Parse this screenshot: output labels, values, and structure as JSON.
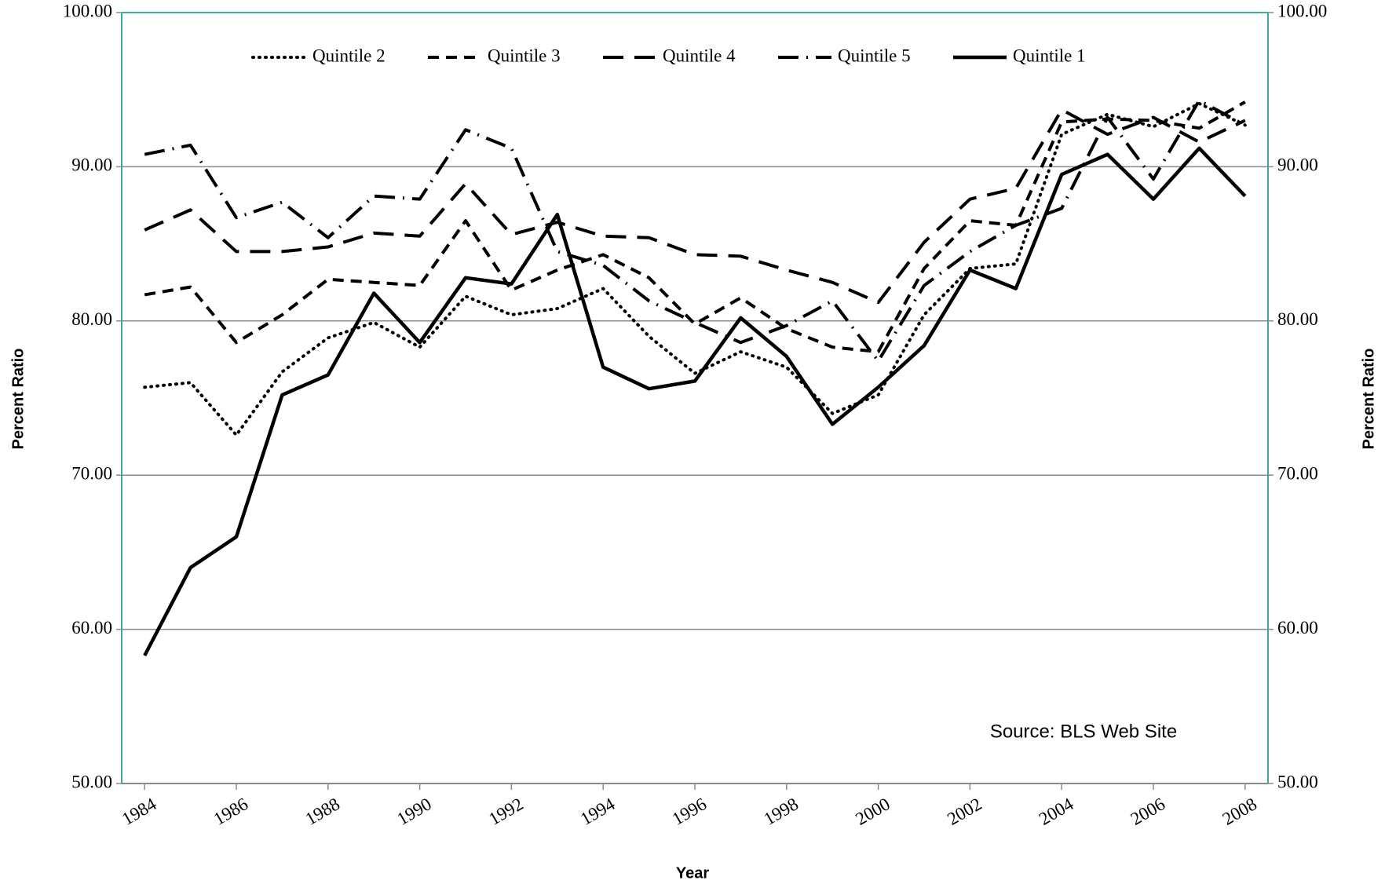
{
  "chart_data": {
    "type": "line",
    "y_label": "Percent Ratio",
    "y2_label": "Percent Ratio",
    "x_label": "Year",
    "annotation": "Source: BLS Web Site",
    "x": [
      1984,
      1985,
      1986,
      1987,
      1988,
      1989,
      1990,
      1991,
      1992,
      1993,
      1994,
      1995,
      1996,
      1997,
      1998,
      1999,
      2000,
      2001,
      2002,
      2003,
      2004,
      2005,
      2006,
      2007,
      2008
    ],
    "xlim": [
      1983.5,
      2008.5
    ],
    "xticks": [
      1984,
      1986,
      1988,
      1990,
      1992,
      1994,
      1996,
      1998,
      2000,
      2002,
      2004,
      2006,
      2008
    ],
    "ylim": [
      50,
      100
    ],
    "yticks": [
      {
        "value": 50,
        "label": "50.00"
      },
      {
        "value": 60,
        "label": "60.00"
      },
      {
        "value": 70,
        "label": "70.00"
      },
      {
        "value": 80,
        "label": "80.00"
      },
      {
        "value": 90,
        "label": "90.00"
      },
      {
        "value": 100,
        "label": "100.00"
      }
    ],
    "y2lim": [
      50,
      100
    ],
    "y2ticks": [
      {
        "value": 50,
        "label": "50.00"
      },
      {
        "value": 60,
        "label": "60.00"
      },
      {
        "value": 70,
        "label": "70.00"
      },
      {
        "value": 80,
        "label": "80.00"
      },
      {
        "value": 90,
        "label": "90.00"
      },
      {
        "value": 100,
        "label": "100.00"
      }
    ],
    "grid": true,
    "legend_position": "top",
    "series": [
      {
        "name": "Quintile 2",
        "color": "#000000",
        "dash": "dotted",
        "values": [
          75.7,
          76.0,
          72.6,
          76.7,
          78.9,
          79.9,
          78.3,
          81.6,
          80.4,
          80.8,
          82.1,
          79.0,
          76.6,
          78.0,
          77.0,
          74.0,
          75.2,
          80.4,
          83.4,
          83.7,
          92.1,
          93.4,
          92.6,
          94.1,
          92.7
        ]
      },
      {
        "name": "Quintile 3",
        "color": "#000000",
        "dash": "short-dash",
        "values": [
          81.7,
          82.2,
          78.6,
          80.4,
          82.7,
          82.5,
          82.3,
          86.5,
          82.0,
          83.3,
          84.3,
          82.8,
          79.8,
          81.5,
          79.5,
          78.3,
          78.0,
          83.4,
          86.5,
          86.2,
          92.9,
          93.1,
          93.0,
          92.5,
          94.2
        ]
      },
      {
        "name": "Quintile 4",
        "color": "#000000",
        "dash": "long-dash",
        "values": [
          85.9,
          87.2,
          84.5,
          84.5,
          84.8,
          85.7,
          85.5,
          88.9,
          85.6,
          86.4,
          85.5,
          85.4,
          84.3,
          84.2,
          83.3,
          82.5,
          81.2,
          85.1,
          87.9,
          88.6,
          93.7,
          92.1,
          93.2,
          91.6,
          93.0
        ]
      },
      {
        "name": "Quintile 5",
        "color": "#000000",
        "dash": "dash-dot",
        "values": [
          90.8,
          91.4,
          86.7,
          87.7,
          85.4,
          88.1,
          87.9,
          92.4,
          91.2,
          84.5,
          83.6,
          81.3,
          79.9,
          78.6,
          79.7,
          81.3,
          77.4,
          82.3,
          84.5,
          86.2,
          87.3,
          93.2,
          89.2,
          94.3,
          92.7
        ]
      },
      {
        "name": "Quintile 1",
        "color": "#000000",
        "dash": "solid",
        "values": [
          58.3,
          64.0,
          66.0,
          75.2,
          76.5,
          81.8,
          78.6,
          82.8,
          82.4,
          86.9,
          77.0,
          75.6,
          76.1,
          80.2,
          77.7,
          73.3,
          75.7,
          78.4,
          83.3,
          82.1,
          89.5,
          90.8,
          87.9,
          91.2,
          88.1
        ]
      }
    ]
  }
}
